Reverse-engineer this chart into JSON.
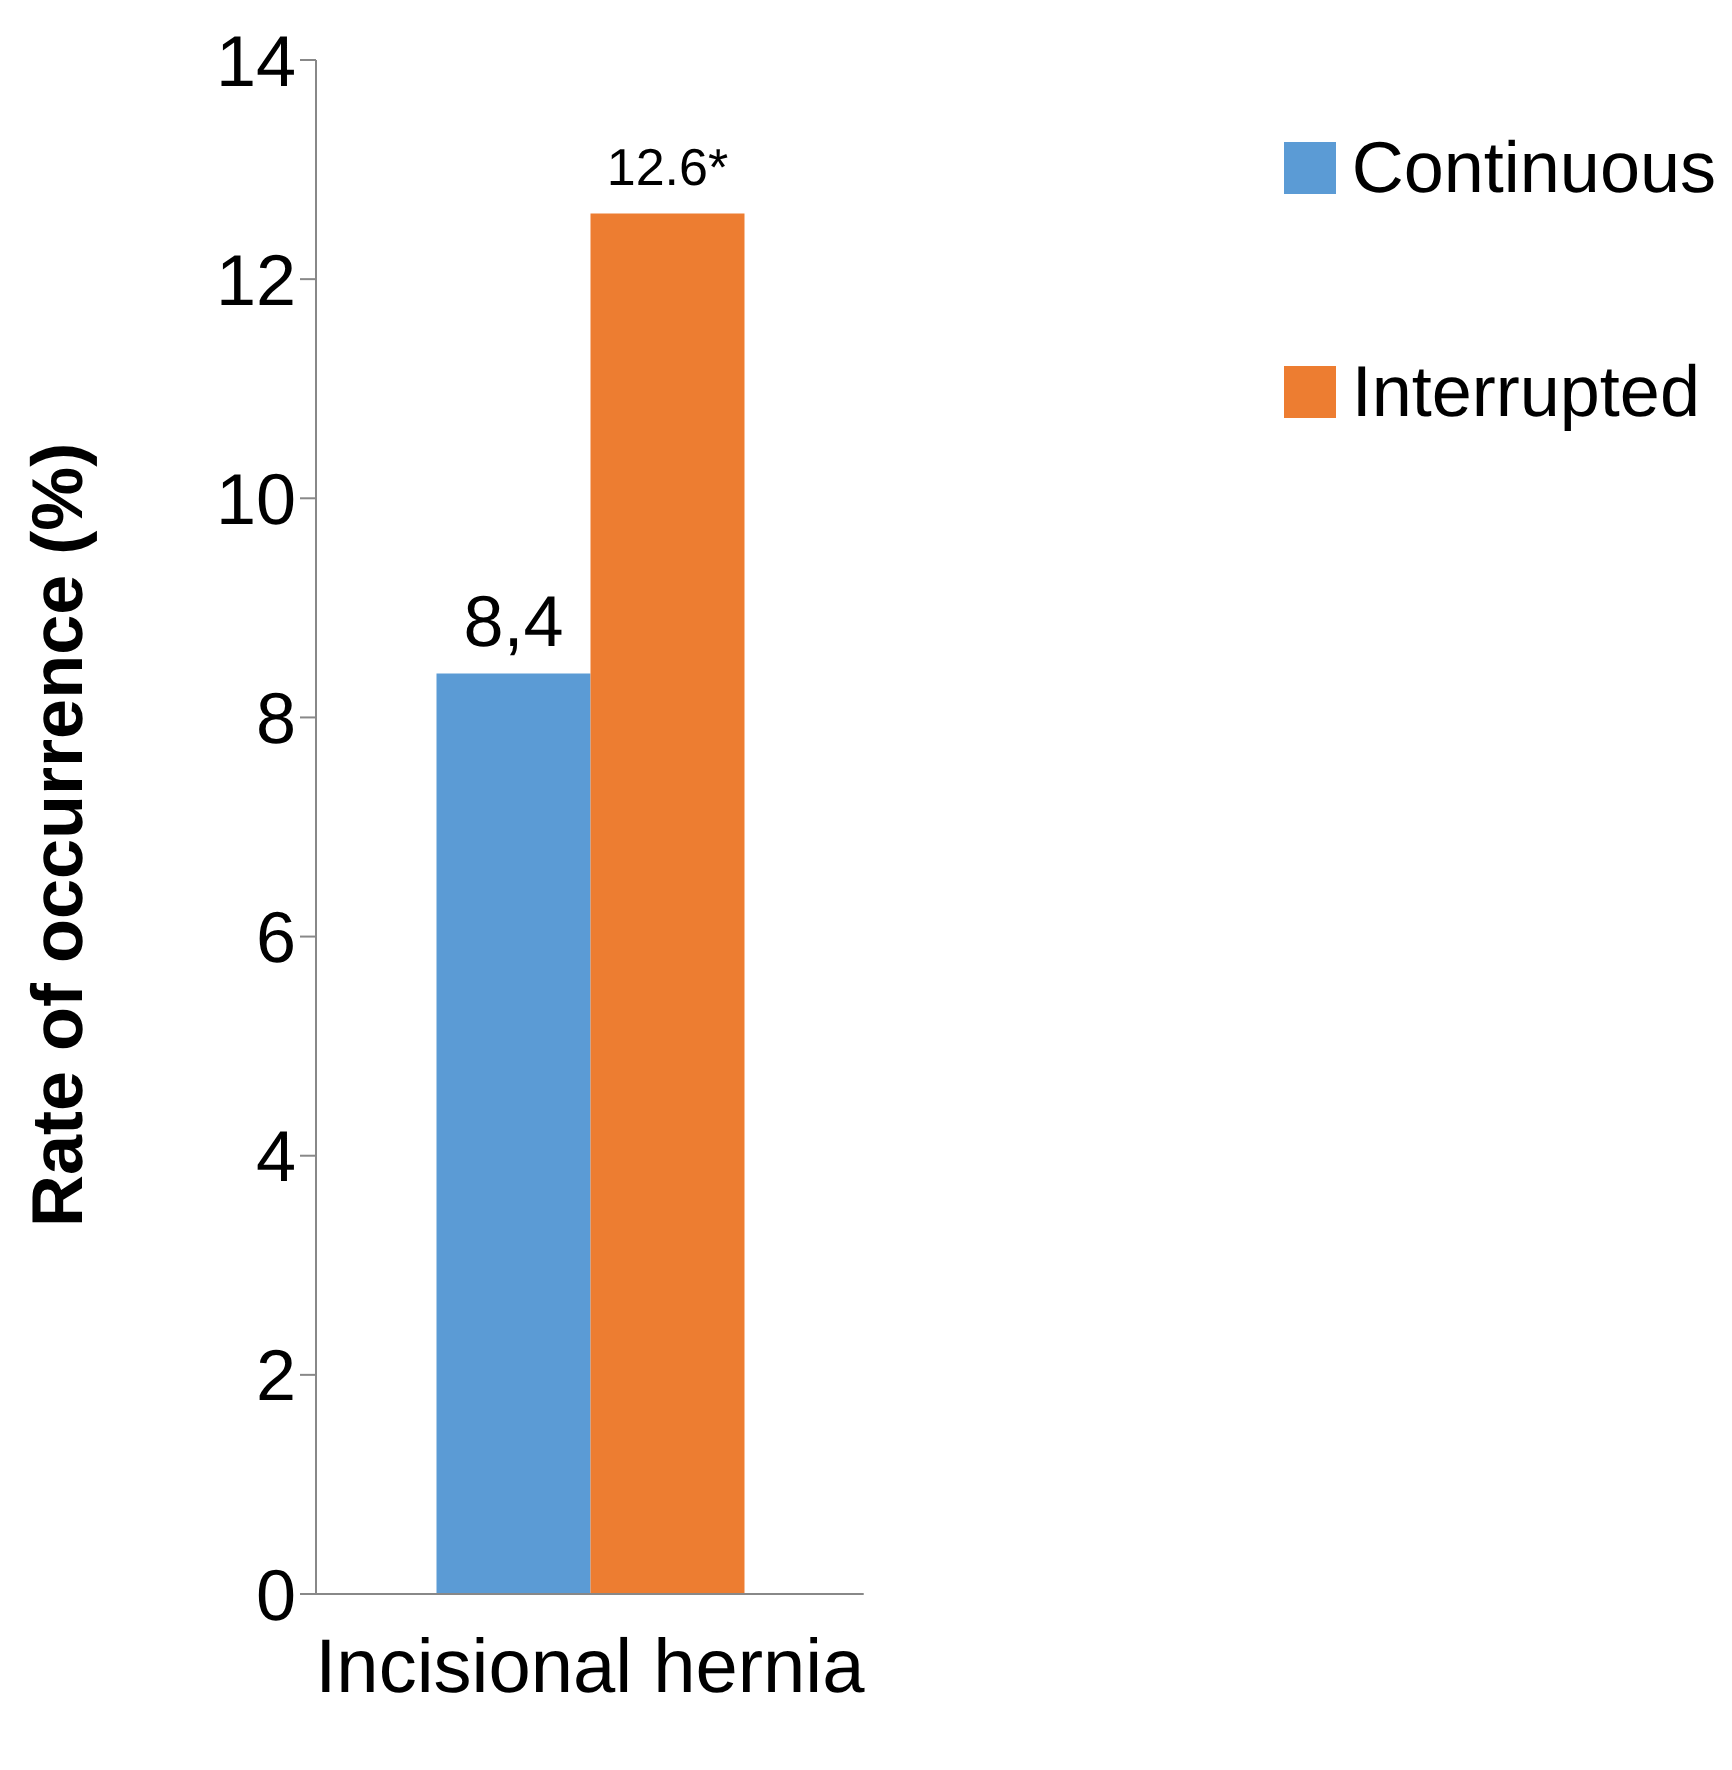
{
  "chart_data": {
    "type": "bar",
    "ylabel": "Rate of occurrence (%)",
    "categories": [
      "Incisional hernia"
    ],
    "series": [
      {
        "name": "Continuous",
        "color": "#5b9bd5",
        "values": [
          8.4
        ],
        "value_labels": [
          "8,4"
        ]
      },
      {
        "name": "Interrupted",
        "color": "#ed7d31",
        "values": [
          12.6
        ],
        "value_labels": [
          "12.6*"
        ]
      }
    ],
    "ylim": [
      0,
      14
    ],
    "yticks": [
      0,
      2,
      4,
      6,
      8,
      10,
      12,
      14
    ],
    "legend": "top right"
  }
}
